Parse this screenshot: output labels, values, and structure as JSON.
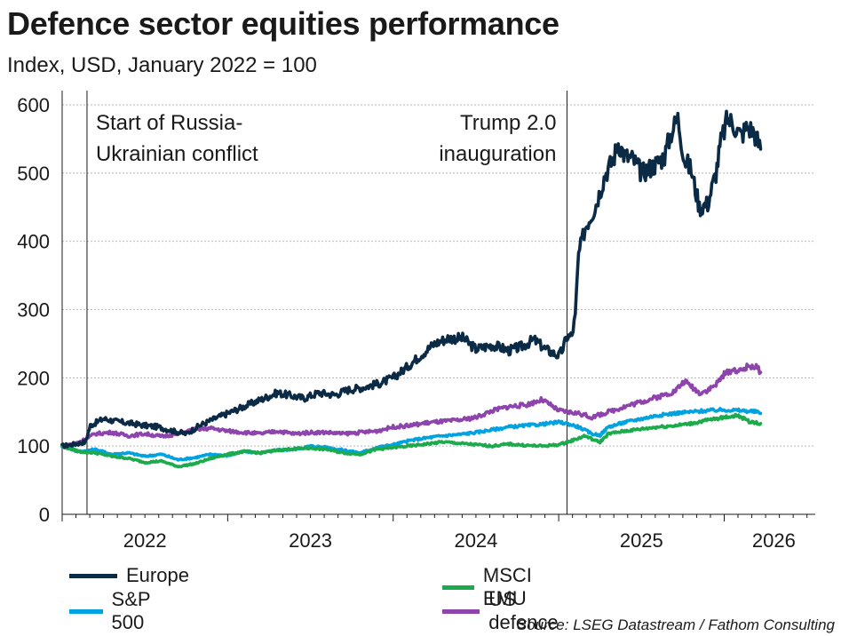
{
  "title": "Defence sector equities performance",
  "subtitle": "Index, USD, January 2022 = 100",
  "source": "Source: LSEG Datastream / Fathom Consulting",
  "chart_data": {
    "type": "line",
    "title": "Defence sector equities performance",
    "subtitle": "Index, USD, January 2022 = 100",
    "xlabel": "",
    "ylabel": "",
    "xlim": [
      2022.0,
      2026.55
    ],
    "ylim": [
      0,
      600
    ],
    "yticks": [
      0,
      100,
      200,
      300,
      400,
      500,
      600
    ],
    "xtick_labels": [
      "2022",
      "2023",
      "2024",
      "2025",
      "2026"
    ],
    "grid": true,
    "legend_position": "bottom",
    "annotations": [
      {
        "x": 2022.15,
        "lines": [
          "Start of Russia-",
          "Ukrainian conflict"
        ],
        "align": "left"
      },
      {
        "x": 2025.05,
        "lines": [
          "Trump 2.0",
          "inauguration"
        ],
        "align": "right"
      }
    ],
    "series": [
      {
        "name": "Europe",
        "color": "#0b2a45",
        "points": [
          [
            2022.0,
            100
          ],
          [
            2022.08,
            103
          ],
          [
            2022.14,
            106
          ],
          [
            2022.17,
            130
          ],
          [
            2022.25,
            140
          ],
          [
            2022.33,
            136
          ],
          [
            2022.42,
            133
          ],
          [
            2022.5,
            130
          ],
          [
            2022.58,
            128
          ],
          [
            2022.67,
            122
          ],
          [
            2022.75,
            118
          ],
          [
            2022.83,
            130
          ],
          [
            2022.92,
            140
          ],
          [
            2023.0,
            148
          ],
          [
            2023.1,
            158
          ],
          [
            2023.2,
            168
          ],
          [
            2023.3,
            178
          ],
          [
            2023.38,
            174
          ],
          [
            2023.46,
            170
          ],
          [
            2023.55,
            178
          ],
          [
            2023.65,
            175
          ],
          [
            2023.72,
            182
          ],
          [
            2023.82,
            186
          ],
          [
            2023.92,
            192
          ],
          [
            2024.0,
            200
          ],
          [
            2024.08,
            215
          ],
          [
            2024.16,
            232
          ],
          [
            2024.25,
            250
          ],
          [
            2024.33,
            258
          ],
          [
            2024.42,
            258
          ],
          [
            2024.5,
            242
          ],
          [
            2024.6,
            248
          ],
          [
            2024.7,
            240
          ],
          [
            2024.78,
            246
          ],
          [
            2024.85,
            256
          ],
          [
            2024.92,
            242
          ],
          [
            2025.0,
            232
          ],
          [
            2025.02,
            240
          ],
          [
            2025.05,
            260
          ],
          [
            2025.08,
            262
          ],
          [
            2025.1,
            290
          ],
          [
            2025.12,
            380
          ],
          [
            2025.16,
            420
          ],
          [
            2025.22,
            450
          ],
          [
            2025.28,
            498
          ],
          [
            2025.33,
            520
          ],
          [
            2025.36,
            545
          ],
          [
            2025.4,
            525
          ],
          [
            2025.45,
            520
          ],
          [
            2025.5,
            500
          ],
          [
            2025.58,
            512
          ],
          [
            2025.64,
            525
          ],
          [
            2025.68,
            560
          ],
          [
            2025.72,
            580
          ],
          [
            2025.76,
            520
          ],
          [
            2025.8,
            505
          ],
          [
            2025.85,
            450
          ],
          [
            2025.9,
            455
          ],
          [
            2025.95,
            500
          ],
          [
            2025.98,
            545
          ],
          [
            2026.02,
            580
          ],
          [
            2026.06,
            570
          ],
          [
            2026.1,
            555
          ],
          [
            2026.14,
            568
          ],
          [
            2026.18,
            560
          ],
          [
            2026.22,
            535
          ]
        ]
      },
      {
        "name": "S&P 500",
        "color": "#00a3e0",
        "points": [
          [
            2022.0,
            100
          ],
          [
            2022.1,
            92
          ],
          [
            2022.2,
            95
          ],
          [
            2022.3,
            88
          ],
          [
            2022.4,
            90
          ],
          [
            2022.5,
            85
          ],
          [
            2022.6,
            88
          ],
          [
            2022.7,
            80
          ],
          [
            2022.8,
            83
          ],
          [
            2022.9,
            88
          ],
          [
            2023.0,
            86
          ],
          [
            2023.1,
            92
          ],
          [
            2023.2,
            90
          ],
          [
            2023.3,
            94
          ],
          [
            2023.4,
            95
          ],
          [
            2023.5,
            100
          ],
          [
            2023.6,
            98
          ],
          [
            2023.7,
            94
          ],
          [
            2023.8,
            90
          ],
          [
            2023.9,
            98
          ],
          [
            2024.0,
            102
          ],
          [
            2024.1,
            108
          ],
          [
            2024.2,
            112
          ],
          [
            2024.3,
            115
          ],
          [
            2024.4,
            117
          ],
          [
            2024.5,
            120
          ],
          [
            2024.6,
            124
          ],
          [
            2024.7,
            128
          ],
          [
            2024.8,
            130
          ],
          [
            2024.9,
            132
          ],
          [
            2025.0,
            135
          ],
          [
            2025.05,
            133
          ],
          [
            2025.12,
            128
          ],
          [
            2025.2,
            118
          ],
          [
            2025.25,
            116
          ],
          [
            2025.3,
            128
          ],
          [
            2025.4,
            135
          ],
          [
            2025.5,
            140
          ],
          [
            2025.6,
            145
          ],
          [
            2025.7,
            148
          ],
          [
            2025.8,
            150
          ],
          [
            2025.9,
            152
          ],
          [
            2026.0,
            153
          ],
          [
            2026.1,
            152
          ],
          [
            2026.2,
            150
          ],
          [
            2026.22,
            148
          ]
        ]
      },
      {
        "name": "MSCI EMU",
        "color": "#1daa4d",
        "points": [
          [
            2022.0,
            100
          ],
          [
            2022.1,
            92
          ],
          [
            2022.2,
            90
          ],
          [
            2022.3,
            85
          ],
          [
            2022.4,
            82
          ],
          [
            2022.5,
            76
          ],
          [
            2022.6,
            78
          ],
          [
            2022.7,
            70
          ],
          [
            2022.8,
            74
          ],
          [
            2022.9,
            82
          ],
          [
            2023.0,
            88
          ],
          [
            2023.1,
            92
          ],
          [
            2023.2,
            90
          ],
          [
            2023.3,
            94
          ],
          [
            2023.4,
            96
          ],
          [
            2023.5,
            97
          ],
          [
            2023.6,
            95
          ],
          [
            2023.7,
            90
          ],
          [
            2023.8,
            88
          ],
          [
            2023.9,
            95
          ],
          [
            2024.0,
            98
          ],
          [
            2024.1,
            100
          ],
          [
            2024.2,
            103
          ],
          [
            2024.3,
            106
          ],
          [
            2024.4,
            104
          ],
          [
            2024.5,
            102
          ],
          [
            2024.6,
            100
          ],
          [
            2024.7,
            103
          ],
          [
            2024.8,
            101
          ],
          [
            2024.9,
            100
          ],
          [
            2025.0,
            102
          ],
          [
            2025.08,
            108
          ],
          [
            2025.16,
            115
          ],
          [
            2025.22,
            108
          ],
          [
            2025.25,
            106
          ],
          [
            2025.3,
            118
          ],
          [
            2025.4,
            122
          ],
          [
            2025.5,
            125
          ],
          [
            2025.6,
            128
          ],
          [
            2025.7,
            130
          ],
          [
            2025.8,
            133
          ],
          [
            2025.9,
            138
          ],
          [
            2026.0,
            142
          ],
          [
            2026.08,
            145
          ],
          [
            2026.15,
            136
          ],
          [
            2026.22,
            133
          ]
        ]
      },
      {
        "name": "US defence",
        "color": "#8e44ad",
        "points": [
          [
            2022.0,
            100
          ],
          [
            2022.08,
            104
          ],
          [
            2022.14,
            110
          ],
          [
            2022.2,
            118
          ],
          [
            2022.3,
            120
          ],
          [
            2022.4,
            115
          ],
          [
            2022.5,
            118
          ],
          [
            2022.6,
            114
          ],
          [
            2022.7,
            118
          ],
          [
            2022.8,
            124
          ],
          [
            2022.9,
            126
          ],
          [
            2023.0,
            122
          ],
          [
            2023.1,
            120
          ],
          [
            2023.2,
            118
          ],
          [
            2023.3,
            122
          ],
          [
            2023.4,
            118
          ],
          [
            2023.5,
            120
          ],
          [
            2023.6,
            120
          ],
          [
            2023.7,
            118
          ],
          [
            2023.8,
            120
          ],
          [
            2023.9,
            122
          ],
          [
            2024.0,
            128
          ],
          [
            2024.1,
            130
          ],
          [
            2024.2,
            134
          ],
          [
            2024.3,
            136
          ],
          [
            2024.4,
            138
          ],
          [
            2024.5,
            142
          ],
          [
            2024.6,
            152
          ],
          [
            2024.7,
            158
          ],
          [
            2024.8,
            160
          ],
          [
            2024.9,
            168
          ],
          [
            2025.0,
            152
          ],
          [
            2025.05,
            150
          ],
          [
            2025.12,
            148
          ],
          [
            2025.2,
            142
          ],
          [
            2025.3,
            150
          ],
          [
            2025.4,
            158
          ],
          [
            2025.5,
            165
          ],
          [
            2025.6,
            172
          ],
          [
            2025.7,
            180
          ],
          [
            2025.76,
            195
          ],
          [
            2025.8,
            188
          ],
          [
            2025.85,
            178
          ],
          [
            2025.9,
            182
          ],
          [
            2025.95,
            190
          ],
          [
            2026.0,
            205
          ],
          [
            2026.05,
            212
          ],
          [
            2026.1,
            210
          ],
          [
            2026.15,
            218
          ],
          [
            2026.2,
            215
          ],
          [
            2026.22,
            208
          ]
        ]
      }
    ]
  }
}
